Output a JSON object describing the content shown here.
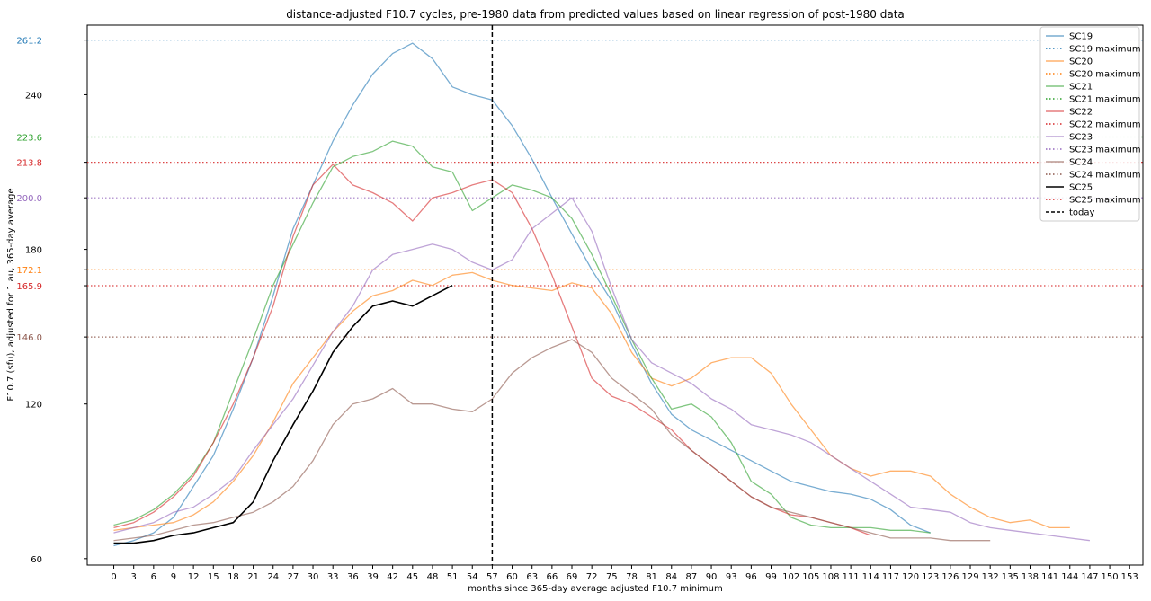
{
  "chart_data": {
    "type": "line",
    "title": "distance-adjusted F10.7 cycles, pre-1980 data from predicted values based on linear regression of post-1980 data",
    "xlabel": "months since 365-day average adjusted F10.7 minimum",
    "ylabel": "F10.7 (sfu), adjusted for 1 au, 365-day average",
    "xlim": [
      -4,
      155
    ],
    "ylim": [
      57.5,
      267
    ],
    "xticks": [
      0,
      3,
      6,
      9,
      12,
      15,
      18,
      21,
      24,
      27,
      30,
      33,
      36,
      39,
      42,
      45,
      48,
      51,
      54,
      57,
      60,
      63,
      66,
      69,
      72,
      75,
      78,
      81,
      84,
      87,
      90,
      93,
      96,
      99,
      102,
      105,
      108,
      111,
      114,
      117,
      120,
      123,
      126,
      129,
      132,
      135,
      138,
      141,
      144,
      147,
      150,
      153
    ],
    "yticks": [
      60,
      120,
      180,
      240
    ],
    "today_x": 57,
    "legend_position": "upper right",
    "series": [
      {
        "name": "SC19",
        "color": "#1f77b4",
        "linestyle": "solid",
        "max_label": "SC19 maximum",
        "max": 261.2,
        "max_text": "261.2",
        "x": [
          0,
          3,
          6,
          9,
          12,
          15,
          18,
          21,
          24,
          27,
          30,
          33,
          36,
          39,
          42,
          45,
          48,
          51,
          54,
          57,
          60,
          63,
          66,
          69,
          72,
          75,
          78,
          81,
          84,
          87,
          90,
          93,
          96,
          99,
          102,
          105,
          108,
          111,
          114,
          117,
          120,
          123
        ],
        "y": [
          65,
          67,
          70,
          76,
          88,
          100,
          118,
          138,
          162,
          188,
          205,
          222,
          236,
          248,
          256,
          260,
          254,
          243,
          240,
          238,
          228,
          215,
          200,
          186,
          172,
          160,
          143,
          128,
          116,
          110,
          106,
          102,
          98,
          94,
          90,
          88,
          86,
          85,
          83,
          79,
          73,
          70
        ]
      },
      {
        "name": "SC20",
        "color": "#ff7f0e",
        "linestyle": "solid",
        "max_label": "SC20 maximum",
        "max": 172.1,
        "max_text": "172.1",
        "x": [
          0,
          3,
          6,
          9,
          12,
          15,
          18,
          21,
          24,
          27,
          30,
          33,
          36,
          39,
          42,
          45,
          48,
          51,
          54,
          57,
          60,
          63,
          66,
          69,
          72,
          75,
          78,
          81,
          84,
          87,
          90,
          93,
          96,
          99,
          102,
          105,
          108,
          111,
          114,
          117,
          120,
          123,
          126,
          129,
          132,
          135,
          138,
          141,
          144
        ],
        "y": [
          71,
          72,
          73,
          74,
          77,
          82,
          90,
          100,
          113,
          128,
          138,
          148,
          156,
          162,
          164,
          168,
          166,
          170,
          171,
          168,
          166,
          165,
          164,
          167,
          165,
          155,
          140,
          130,
          127,
          130,
          136,
          138,
          138,
          132,
          120,
          110,
          100,
          95,
          92,
          94,
          94,
          92,
          85,
          80,
          76,
          74,
          75,
          72,
          72
        ]
      },
      {
        "name": "SC21",
        "color": "#2ca02c",
        "linestyle": "solid",
        "max_label": "SC21 maximum",
        "max": 223.6,
        "max_text": "223.6",
        "x": [
          0,
          3,
          6,
          9,
          12,
          15,
          18,
          21,
          24,
          27,
          30,
          33,
          36,
          39,
          42,
          45,
          48,
          51,
          54,
          57,
          60,
          63,
          66,
          69,
          72,
          75,
          78,
          81,
          84,
          87,
          90,
          93,
          96,
          99,
          102,
          105,
          108,
          111,
          114,
          117,
          120,
          123
        ],
        "y": [
          73,
          75,
          79,
          85,
          93,
          105,
          125,
          145,
          166,
          182,
          198,
          212,
          216,
          218,
          222,
          220,
          212,
          210,
          195,
          200,
          205,
          203,
          200,
          192,
          178,
          162,
          145,
          130,
          118,
          120,
          115,
          105,
          90,
          85,
          76,
          73,
          72,
          72,
          72,
          71,
          71,
          70
        ]
      },
      {
        "name": "SC22",
        "color": "#d62728",
        "linestyle": "solid",
        "max_label": "SC22 maximum",
        "max": 213.8,
        "max_text": "213.8",
        "x": [
          0,
          3,
          6,
          9,
          12,
          15,
          18,
          21,
          24,
          27,
          30,
          33,
          36,
          39,
          42,
          45,
          48,
          51,
          54,
          57,
          60,
          63,
          66,
          69,
          72,
          75,
          78,
          81,
          84,
          87,
          90,
          93,
          96,
          99,
          102,
          105,
          108,
          111,
          114
        ],
        "y": [
          72,
          74,
          78,
          84,
          92,
          105,
          120,
          138,
          158,
          185,
          205,
          213,
          205,
          202,
          198,
          191,
          200,
          202,
          205,
          207,
          202,
          188,
          170,
          150,
          130,
          123,
          120,
          115,
          110,
          102,
          96,
          90,
          84,
          80,
          77,
          76,
          74,
          72,
          69
        ]
      },
      {
        "name": "SC23",
        "color": "#9467bd",
        "linestyle": "solid",
        "max_label": "SC23 maximum",
        "max": 200.0,
        "max_text": "200.0",
        "x": [
          0,
          3,
          6,
          9,
          12,
          15,
          18,
          21,
          24,
          27,
          30,
          33,
          36,
          39,
          42,
          45,
          48,
          51,
          54,
          57,
          60,
          63,
          66,
          69,
          72,
          75,
          78,
          81,
          84,
          87,
          90,
          93,
          96,
          99,
          102,
          105,
          108,
          111,
          114,
          117,
          120,
          123,
          126,
          129,
          132,
          135,
          138,
          141,
          144,
          147
        ],
        "y": [
          70,
          72,
          74,
          78,
          80,
          85,
          91,
          102,
          112,
          122,
          135,
          148,
          158,
          172,
          178,
          180,
          182,
          180,
          175,
          172,
          176,
          188,
          194,
          200,
          187,
          165,
          145,
          136,
          132,
          128,
          122,
          118,
          112,
          110,
          108,
          105,
          100,
          95,
          90,
          85,
          80,
          79,
          78,
          74,
          72,
          71,
          70,
          69,
          68,
          67
        ]
      },
      {
        "name": "SC24",
        "color": "#8c564b",
        "linestyle": "solid",
        "max_label": "SC24 maximum",
        "max": 146.0,
        "max_text": "146.0",
        "x": [
          0,
          3,
          6,
          9,
          12,
          15,
          18,
          21,
          24,
          27,
          30,
          33,
          36,
          39,
          42,
          45,
          48,
          51,
          54,
          57,
          60,
          63,
          66,
          69,
          72,
          75,
          78,
          81,
          84,
          87,
          90,
          93,
          96,
          99,
          102,
          105,
          108,
          111,
          114,
          117,
          120,
          123,
          126,
          129,
          132
        ],
        "y": [
          67,
          68,
          69,
          71,
          73,
          74,
          76,
          78,
          82,
          88,
          98,
          112,
          120,
          122,
          126,
          120,
          120,
          118,
          117,
          122,
          132,
          138,
          142,
          145,
          140,
          130,
          124,
          118,
          108,
          102,
          96,
          90,
          84,
          80,
          78,
          76,
          74,
          72,
          70,
          68,
          68,
          68,
          67,
          67,
          67
        ]
      },
      {
        "name": "SC25",
        "color": "#000000",
        "linestyle": "solid",
        "max_label": "SC25 maximum",
        "max": 165.9,
        "max_text": "165.9",
        "max_color": "#d62728",
        "x": [
          0,
          3,
          6,
          9,
          12,
          15,
          18,
          21,
          24,
          27,
          30,
          33,
          36,
          39,
          42,
          45,
          48,
          51
        ],
        "y": [
          66,
          66,
          67,
          69,
          70,
          72,
          74,
          82,
          98,
          112,
          125,
          140,
          150,
          158,
          160,
          158,
          162,
          166
        ]
      }
    ],
    "legend": [
      "SC19",
      "SC19 maximum",
      "SC20",
      "SC20 maximum",
      "SC21",
      "SC21 maximum",
      "SC22",
      "SC22 maximum",
      "SC23",
      "SC23 maximum",
      "SC24",
      "SC24 maximum",
      "SC25",
      "SC25 maximum",
      "today"
    ]
  }
}
